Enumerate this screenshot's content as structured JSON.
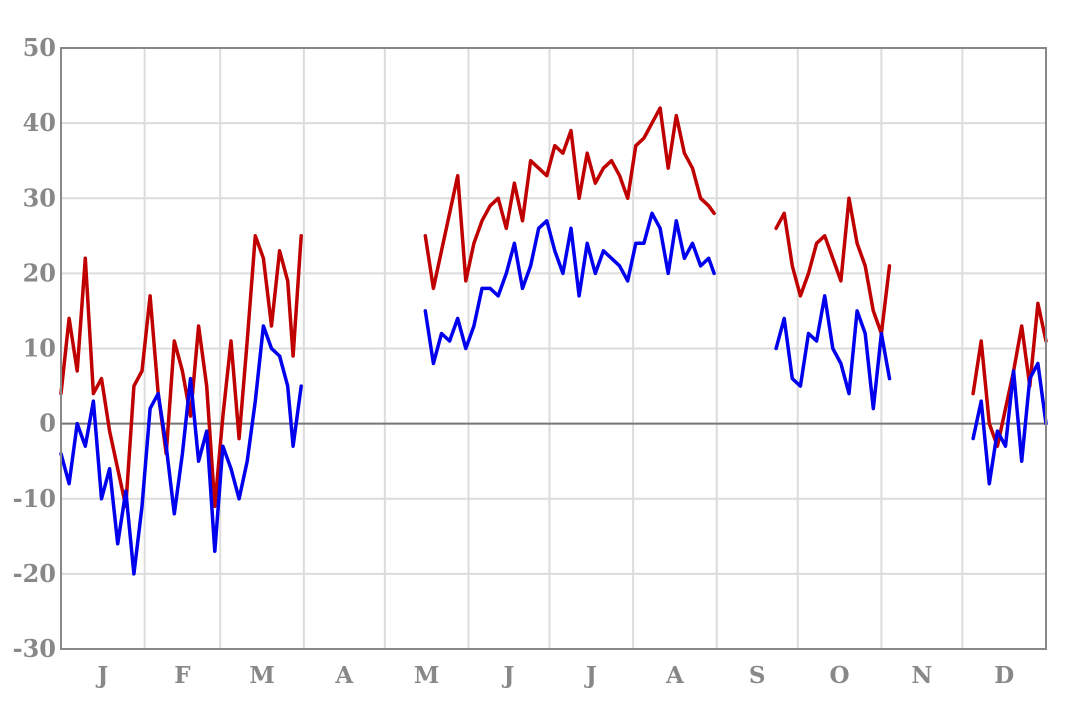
{
  "chart_data": {
    "type": "line",
    "title": "",
    "xlabel": "",
    "ylabel": "",
    "ylim": [
      -30,
      50
    ],
    "y_ticks": [
      -30,
      -20,
      -10,
      0,
      10,
      20,
      30,
      40,
      50
    ],
    "x_range_days": [
      0,
      365
    ],
    "month_labels": [
      "J",
      "F",
      "M",
      "A",
      "M",
      "J",
      "J",
      "A",
      "S",
      "O",
      "N",
      "D"
    ],
    "month_start_days": [
      0,
      31,
      59,
      90,
      120,
      151,
      181,
      212,
      243,
      273,
      304,
      334,
      365
    ],
    "grid": true,
    "zero_line": true,
    "colors": {
      "high": "#c00000",
      "low": "#0000ee",
      "grid": "#dcdcdc",
      "axis": "#888888",
      "zero_line": "#777777"
    },
    "series": [
      {
        "color": "#c00000",
        "segments": [
          {
            "x": [
              0,
              3,
              6,
              9,
              12,
              15,
              18,
              21,
              24,
              27,
              30,
              33,
              36,
              39,
              42,
              45,
              48,
              51,
              54,
              57,
              60,
              63,
              66,
              69,
              72,
              75,
              78,
              81,
              84,
              86,
              89
            ],
            "y": [
              4,
              14,
              7,
              22,
              4,
              6,
              -1,
              -6,
              -11,
              5,
              7,
              17,
              4,
              -4,
              11,
              7,
              1,
              13,
              5,
              -11,
              1,
              11,
              -2,
              11,
              25,
              22,
              13,
              23,
              19,
              9,
              25
            ]
          },
          {
            "x": [
              135,
              138,
              141,
              144,
              147,
              150,
              153,
              156,
              159,
              162,
              165,
              168,
              171,
              174,
              177,
              180,
              183,
              186,
              189,
              192,
              195,
              198,
              201,
              204,
              207,
              210,
              213,
              216,
              219,
              222,
              225,
              228,
              231,
              234,
              237,
              240,
              242
            ],
            "y": [
              25,
              18,
              23,
              28,
              33,
              19,
              24,
              27,
              29,
              30,
              26,
              32,
              27,
              35,
              34,
              33,
              37,
              36,
              39,
              30,
              36,
              32,
              34,
              35,
              33,
              30,
              37,
              38,
              40,
              42,
              34,
              41,
              36,
              34,
              30,
              29,
              28
            ]
          },
          {
            "x": [
              265,
              268,
              271,
              274,
              277,
              280,
              283,
              286,
              289,
              292,
              295,
              298,
              301,
              304,
              307
            ],
            "y": [
              26,
              28,
              21,
              17,
              20,
              24,
              25,
              22,
              19,
              30,
              24,
              21,
              15,
              12,
              21
            ]
          },
          {
            "x": [
              338,
              341,
              344,
              347,
              350,
              353,
              356,
              359,
              362,
              365
            ],
            "y": [
              4,
              11,
              0,
              -3,
              2,
              7,
              13,
              5,
              16,
              11
            ]
          }
        ]
      },
      {
        "color": "#0000ee",
        "segments": [
          {
            "x": [
              0,
              3,
              6,
              9,
              12,
              15,
              18,
              21,
              24,
              27,
              30,
              33,
              36,
              39,
              42,
              45,
              48,
              51,
              54,
              57,
              60,
              63,
              66,
              69,
              72,
              75,
              78,
              81,
              84,
              86,
              89
            ],
            "y": [
              -4,
              -8,
              0,
              -3,
              3,
              -10,
              -6,
              -16,
              -9,
              -20,
              -11,
              2,
              4,
              -3,
              -12,
              -4,
              6,
              -5,
              -1,
              -17,
              -3,
              -6,
              -10,
              -5,
              3,
              13,
              10,
              9,
              5,
              -3,
              5
            ]
          },
          {
            "x": [
              135,
              138,
              141,
              144,
              147,
              150,
              153,
              156,
              159,
              162,
              165,
              168,
              171,
              174,
              177,
              180,
              183,
              186,
              189,
              192,
              195,
              198,
              201,
              204,
              207,
              210,
              213,
              216,
              219,
              222,
              225,
              228,
              231,
              234,
              237,
              240,
              242
            ],
            "y": [
              15,
              8,
              12,
              11,
              14,
              10,
              13,
              18,
              18,
              17,
              20,
              24,
              18,
              21,
              26,
              27,
              23,
              20,
              26,
              17,
              24,
              20,
              23,
              22,
              21,
              19,
              24,
              24,
              28,
              26,
              20,
              27,
              22,
              24,
              21,
              22,
              20
            ]
          },
          {
            "x": [
              265,
              268,
              271,
              274,
              277,
              280,
              283,
              286,
              289,
              292,
              295,
              298,
              301,
              304,
              307
            ],
            "y": [
              10,
              14,
              6,
              5,
              12,
              11,
              17,
              10,
              8,
              4,
              15,
              12,
              2,
              12,
              6
            ]
          },
          {
            "x": [
              338,
              341,
              344,
              347,
              350,
              353,
              356,
              359,
              362,
              365
            ],
            "y": [
              -2,
              3,
              -8,
              -1,
              -3,
              7,
              -5,
              6,
              8,
              0
            ]
          }
        ]
      }
    ]
  }
}
